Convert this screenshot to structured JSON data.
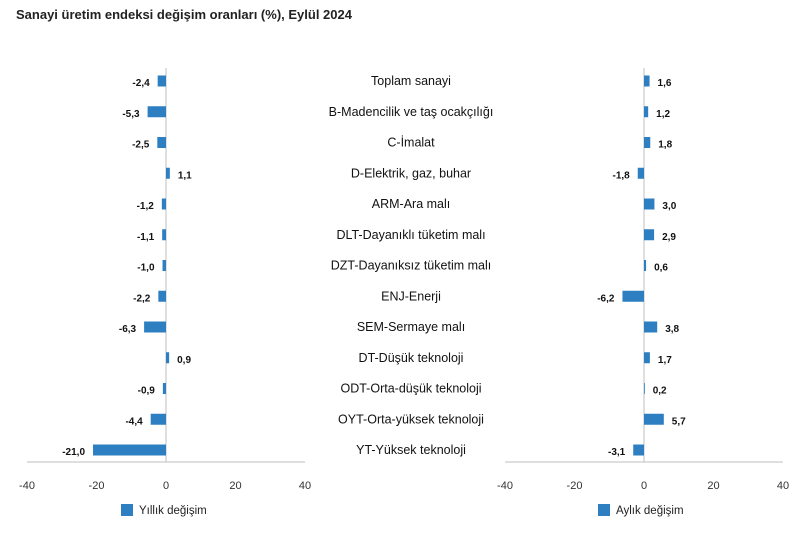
{
  "chart_data": [
    {
      "type": "bar",
      "orientation": "horizontal",
      "title": "Sanayi üretim endeksi değişim oranları (%), Eylül 2024",
      "series_name": "Yıllık değişim",
      "categories": [
        "Toplam sanayi",
        "B-Madencilik ve taş ocakçılığı",
        "C-İmalat",
        "D-Elektrik, gaz, buhar",
        "ARM-Ara malı",
        "DLT-Dayanıklı tüketim malı",
        "DZT-Dayanıksız tüketim malı",
        "ENJ-Enerji",
        "SEM-Sermaye malı",
        "DT-Düşük teknoloji",
        "ODT-Orta-düşük teknoloji",
        "OYT-Orta-yüksek teknoloji",
        "YT-Yüksek teknoloji"
      ],
      "values": [
        -2.4,
        -5.3,
        -2.5,
        1.1,
        -1.2,
        -1.1,
        -1.0,
        -2.2,
        -6.3,
        0.9,
        -0.9,
        -4.4,
        -21.0
      ],
      "value_labels": [
        "-2,4",
        "-5,3",
        "-2,5",
        "1,1",
        "-1,2",
        "-1,1",
        "-1,0",
        "-2,2",
        "-6,3",
        "0,9",
        "-0,9",
        "-4,4",
        "-21,0"
      ],
      "xlim": [
        -40,
        40
      ],
      "xticks": [
        "-40",
        "-20",
        "0",
        "20",
        "40"
      ],
      "color": "#2E7FC1"
    },
    {
      "type": "bar",
      "orientation": "horizontal",
      "series_name": "Aylık değişim",
      "categories": [
        "Toplam sanayi",
        "B-Madencilik ve taş ocakçılığı",
        "C-İmalat",
        "D-Elektrik, gaz, buhar",
        "ARM-Ara malı",
        "DLT-Dayanıklı tüketim malı",
        "DZT-Dayanıksız tüketim malı",
        "ENJ-Enerji",
        "SEM-Sermaye malı",
        "DT-Düşük teknoloji",
        "ODT-Orta-düşük teknoloji",
        "OYT-Orta-yüksek teknoloji",
        "YT-Yüksek teknoloji"
      ],
      "values": [
        1.6,
        1.2,
        1.8,
        -1.8,
        3.0,
        2.9,
        0.6,
        -6.2,
        3.8,
        1.7,
        0.2,
        5.7,
        -3.1
      ],
      "value_labels": [
        "1,6",
        "1,2",
        "1,8",
        "-1,8",
        "3,0",
        "2,9",
        "0,6",
        "-6,2",
        "3,8",
        "1,7",
        "0,2",
        "5,7",
        "-3,1"
      ],
      "xlim": [
        -40,
        40
      ],
      "xticks": [
        "-40",
        "-20",
        "0",
        "20",
        "40"
      ],
      "color": "#2E7FC1"
    }
  ]
}
